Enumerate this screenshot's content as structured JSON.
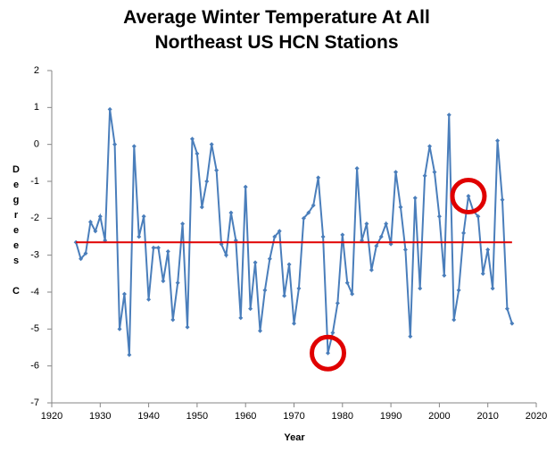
{
  "chart_data": {
    "type": "line",
    "title": "Average Winter Temperature At All Northeast US HCN Stations",
    "xlabel": "Year",
    "ylabel": "Degrees C",
    "x": [
      1925,
      1926,
      1927,
      1928,
      1929,
      1930,
      1931,
      1932,
      1933,
      1934,
      1935,
      1936,
      1937,
      1938,
      1939,
      1940,
      1941,
      1942,
      1943,
      1944,
      1945,
      1946,
      1947,
      1948,
      1949,
      1950,
      1951,
      1952,
      1953,
      1954,
      1955,
      1956,
      1957,
      1958,
      1959,
      1960,
      1961,
      1962,
      1963,
      1964,
      1965,
      1966,
      1967,
      1968,
      1969,
      1970,
      1971,
      1972,
      1973,
      1974,
      1975,
      1976,
      1977,
      1978,
      1979,
      1980,
      1981,
      1982,
      1983,
      1984,
      1985,
      1986,
      1987,
      1988,
      1989,
      1990,
      1991,
      1992,
      1993,
      1994,
      1995,
      1996,
      1997,
      1998,
      1999,
      2000,
      2001,
      2002,
      2003,
      2004,
      2005,
      2006,
      2007,
      2008,
      2009,
      2010,
      2011,
      2012,
      2013,
      2014,
      2015
    ],
    "series": [
      {
        "color": "#4a7ebb",
        "values": [
          -2.65,
          -3.1,
          -2.95,
          -2.1,
          -2.35,
          -1.95,
          -2.6,
          0.95,
          0.0,
          -5.0,
          -4.05,
          -5.7,
          -0.05,
          -2.5,
          -1.95,
          -4.2,
          -2.8,
          -2.8,
          -3.7,
          -2.9,
          -4.75,
          -3.75,
          -2.15,
          -4.95,
          0.15,
          -0.25,
          -1.7,
          -1.0,
          0.0,
          -0.7,
          -2.7,
          -3.0,
          -1.85,
          -2.6,
          -4.7,
          -1.15,
          -4.45,
          -3.2,
          -5.05,
          -3.95,
          -3.1,
          -2.5,
          -2.35,
          -4.1,
          -3.25,
          -4.85,
          -3.9,
          -2.0,
          -1.85,
          -1.65,
          -0.9,
          -2.5,
          -5.65,
          -5.1,
          -4.3,
          -2.45,
          -3.75,
          -4.05,
          -0.65,
          -2.6,
          -2.15,
          -3.4,
          -2.75,
          -2.5,
          -2.15,
          -2.7,
          -0.75,
          -1.7,
          -2.85,
          -5.2,
          -1.45,
          -3.9,
          -0.85,
          -0.05,
          -0.75,
          -1.95,
          -3.55,
          0.8,
          -4.75,
          -3.95,
          -2.4,
          -1.4,
          -1.8,
          -1.95,
          -3.5,
          -2.85,
          -3.9,
          0.1,
          -1.5,
          -4.45,
          -4.85
        ]
      }
    ],
    "reference_line": {
      "x": [
        1925,
        2015
      ],
      "values": [
        -2.65,
        -2.65
      ],
      "color": "#e00000"
    },
    "highlights": {
      "x": [
        1977,
        2006
      ],
      "values": [
        -5.65,
        -1.4
      ],
      "color": "#e00000"
    },
    "xlim": [
      1920,
      2020
    ],
    "xticks": [
      1920,
      1930,
      1940,
      1950,
      1960,
      1970,
      1980,
      1990,
      2000,
      2010,
      2020
    ],
    "ylim": [
      -7,
      2
    ],
    "yticks": [
      -7,
      -6,
      -5,
      -4,
      -3,
      -2,
      -1,
      0,
      1,
      2
    ],
    "grid": false
  }
}
